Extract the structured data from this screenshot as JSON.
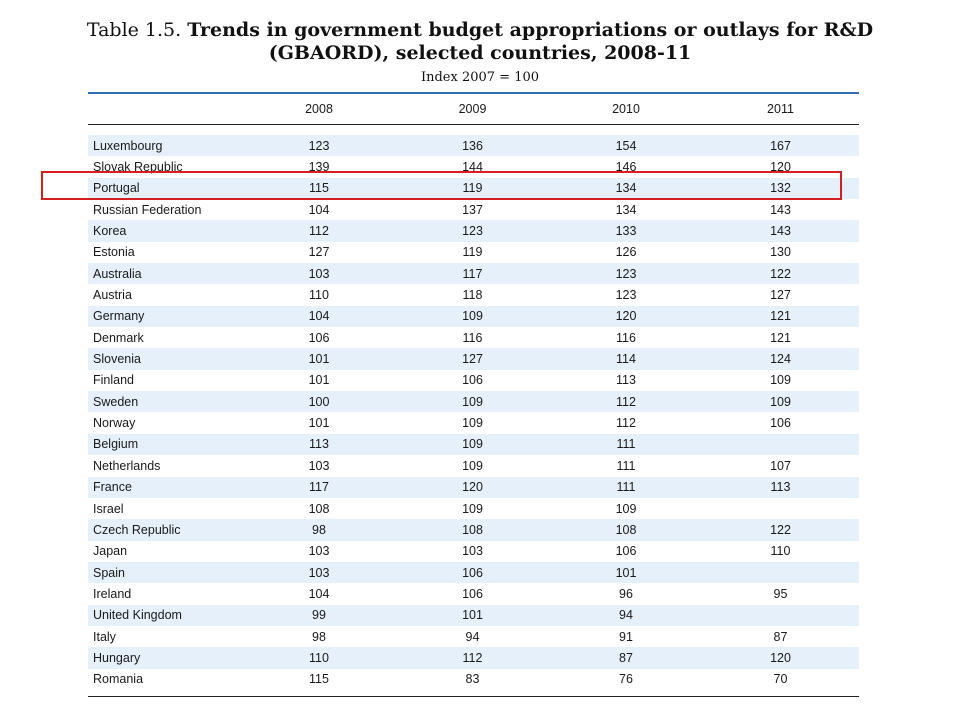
{
  "title": {
    "prefix": "Table 1.5.",
    "bold_line1": "Trends in government budget appropriations or outlays for R&D",
    "line2": "(GBAORD), selected countries, 2008-11"
  },
  "subtitle": "Index 2007 = 100",
  "highlight_color": "#d42020",
  "table": {
    "columns": [
      "2008",
      "2009",
      "2010",
      "2011"
    ],
    "rows": [
      {
        "country": "Luxembourg",
        "values": [
          "123",
          "136",
          "154",
          "167"
        ]
      },
      {
        "country": "Slovak Republic",
        "values": [
          "139",
          "144",
          "146",
          "120"
        ]
      },
      {
        "country": "Portugal",
        "values": [
          "115",
          "119",
          "134",
          "132"
        ],
        "highlighted": true
      },
      {
        "country": "Russian Federation",
        "values": [
          "104",
          "137",
          "134",
          "143"
        ]
      },
      {
        "country": "Korea",
        "values": [
          "112",
          "123",
          "133",
          "143"
        ]
      },
      {
        "country": "Estonia",
        "values": [
          "127",
          "119",
          "126",
          "130"
        ]
      },
      {
        "country": "Australia",
        "values": [
          "103",
          "117",
          "123",
          "122"
        ]
      },
      {
        "country": "Austria",
        "values": [
          "110",
          "118",
          "123",
          "127"
        ]
      },
      {
        "country": "Germany",
        "values": [
          "104",
          "109",
          "120",
          "121"
        ]
      },
      {
        "country": "Denmark",
        "values": [
          "106",
          "116",
          "116",
          "121"
        ]
      },
      {
        "country": "Slovenia",
        "values": [
          "101",
          "127",
          "114",
          "124"
        ]
      },
      {
        "country": "Finland",
        "values": [
          "101",
          "106",
          "113",
          "109"
        ]
      },
      {
        "country": "Sweden",
        "values": [
          "100",
          "109",
          "112",
          "109"
        ]
      },
      {
        "country": "Norway",
        "values": [
          "101",
          "109",
          "112",
          "106"
        ]
      },
      {
        "country": "Belgium",
        "values": [
          "113",
          "109",
          "111",
          ""
        ]
      },
      {
        "country": "Netherlands",
        "values": [
          "103",
          "109",
          "111",
          "107"
        ]
      },
      {
        "country": "France",
        "values": [
          "117",
          "120",
          "111",
          "113"
        ]
      },
      {
        "country": "Israel",
        "values": [
          "108",
          "109",
          "109",
          ""
        ]
      },
      {
        "country": "Czech Republic",
        "values": [
          "98",
          "108",
          "108",
          "122"
        ]
      },
      {
        "country": "Japan",
        "values": [
          "103",
          "103",
          "106",
          "110"
        ]
      },
      {
        "country": "Spain",
        "values": [
          "103",
          "106",
          "101",
          ""
        ]
      },
      {
        "country": "Ireland",
        "values": [
          "104",
          "106",
          "96",
          "95"
        ]
      },
      {
        "country": "United Kingdom",
        "values": [
          "99",
          "101",
          "94",
          ""
        ]
      },
      {
        "country": "Italy",
        "values": [
          "98",
          "94",
          "91",
          "87"
        ]
      },
      {
        "country": "Hungary",
        "values": [
          "110",
          "112",
          "87",
          "120"
        ]
      },
      {
        "country": "Romania",
        "values": [
          "115",
          "83",
          "76",
          "70"
        ]
      }
    ]
  }
}
